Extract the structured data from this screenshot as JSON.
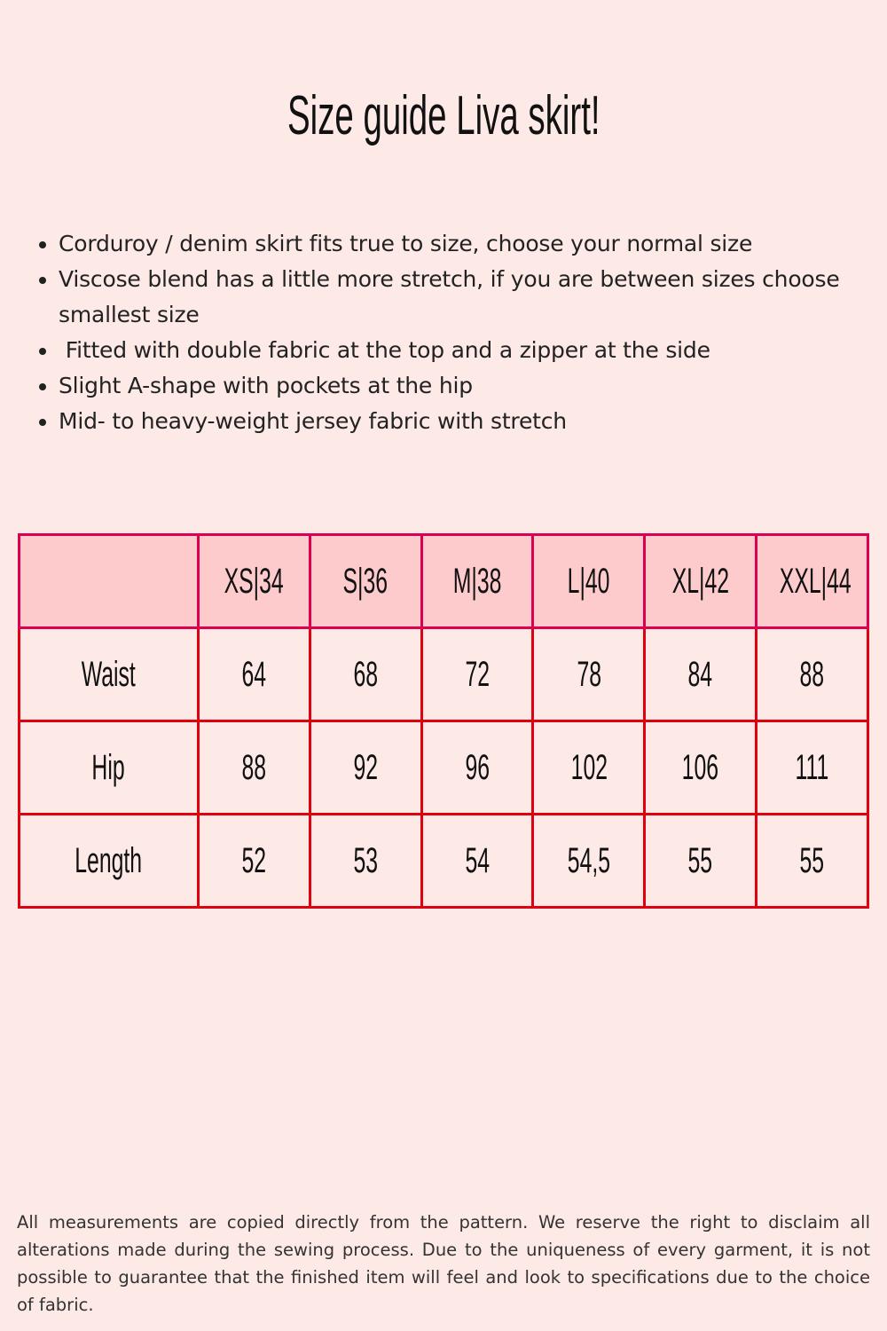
{
  "title": "Size guide Liva skirt!",
  "bullets": [
    "Corduroy / denim skirt fits true to size, choose your normal size",
    "Viscose blend has a little more stretch, if you are between sizes choose smallest size",
    " Fitted with double fabric at the top and a zipper at the side",
    "Slight A-shape with pockets at the hip",
    "Mid- to heavy-weight jersey fabric with stretch"
  ],
  "table": {
    "columns": [
      "",
      "XS|34",
      "S|36",
      "M|38",
      "L|40",
      "XL|42",
      "XXL|44"
    ],
    "rows": [
      {
        "label": "Waist",
        "values": [
          "64",
          "68",
          "72",
          "78",
          "84",
          "88"
        ]
      },
      {
        "label": "Hip",
        "values": [
          "88",
          "92",
          "96",
          "102",
          "106",
          "111"
        ]
      },
      {
        "label": "Length",
        "values": [
          "52",
          "53",
          "54",
          "54,5",
          "55",
          "55"
        ]
      }
    ]
  },
  "colors": {
    "background": "#fde9e5",
    "header_fill": "#fecbcd",
    "header_border": "#dd0050",
    "body_border": "#e00010"
  },
  "footer": "All measurements are copied directly from the pattern. We reserve the right to disclaim all alterations made during the sewing process. Due to the uniqueness of every garment, it is not possible to guarantee that the finished item will feel and look to specifications due to the choice of fabric."
}
